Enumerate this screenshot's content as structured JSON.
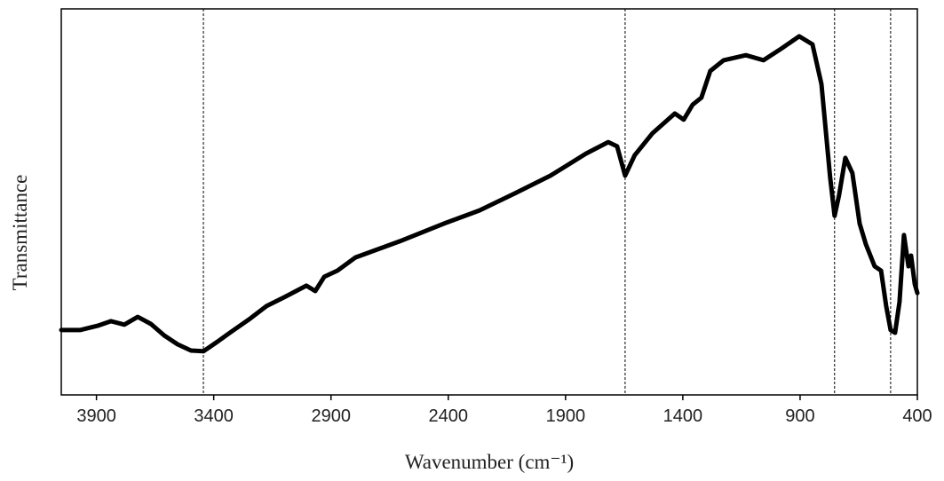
{
  "chart_data": {
    "type": "line",
    "x_label": "Wavenumber (cm⁻¹)",
    "y_label": "Transmittance",
    "xlim": [
      4050,
      400
    ],
    "ylim": [
      0,
      100
    ],
    "xticks": [
      3900,
      3400,
      2900,
      2400,
      1900,
      1400,
      900,
      400
    ],
    "reference_lines": [
      3444,
      1646,
      753,
      514
    ],
    "series": [
      {
        "color": "#000000",
        "x": [
          4050,
          3970,
          3895,
          3838,
          3781,
          3724,
          3668,
          3611,
          3554,
          3497,
          3444,
          3384,
          3327,
          3251,
          3175,
          3099,
          3005,
          2967,
          2929,
          2872,
          2796,
          2607,
          2418,
          2267,
          2116,
          1964,
          1813,
          1718,
          1680,
          1646,
          1605,
          1529,
          1434,
          1396,
          1358,
          1321,
          1283,
          1226,
          1131,
          1056,
          980,
          904,
          847,
          809,
          772,
          753,
          734,
          707,
          677,
          646,
          620,
          582,
          555,
          533,
          514,
          495,
          476,
          457,
          438,
          427,
          411,
          400
        ],
        "values": [
          16.8,
          16.8,
          17.9,
          19.1,
          18.2,
          20.2,
          18.4,
          15.4,
          13.1,
          11.5,
          11.3,
          13.8,
          16.3,
          19.5,
          23.0,
          25.3,
          28.3,
          26.9,
          30.6,
          32.2,
          35.6,
          39.8,
          44.4,
          47.8,
          52.2,
          56.8,
          62.5,
          65.5,
          64.4,
          56.8,
          62.1,
          67.8,
          72.9,
          71.3,
          75.2,
          77.0,
          83.9,
          86.7,
          88.0,
          86.7,
          89.7,
          92.9,
          90.8,
          80.5,
          56.3,
          46.4,
          51.7,
          61.4,
          57.5,
          44.4,
          39.1,
          33.3,
          32.2,
          23.0,
          16.8,
          16.1,
          24.1,
          41.4,
          33.3,
          36.1,
          28.7,
          26.4
        ]
      }
    ]
  }
}
